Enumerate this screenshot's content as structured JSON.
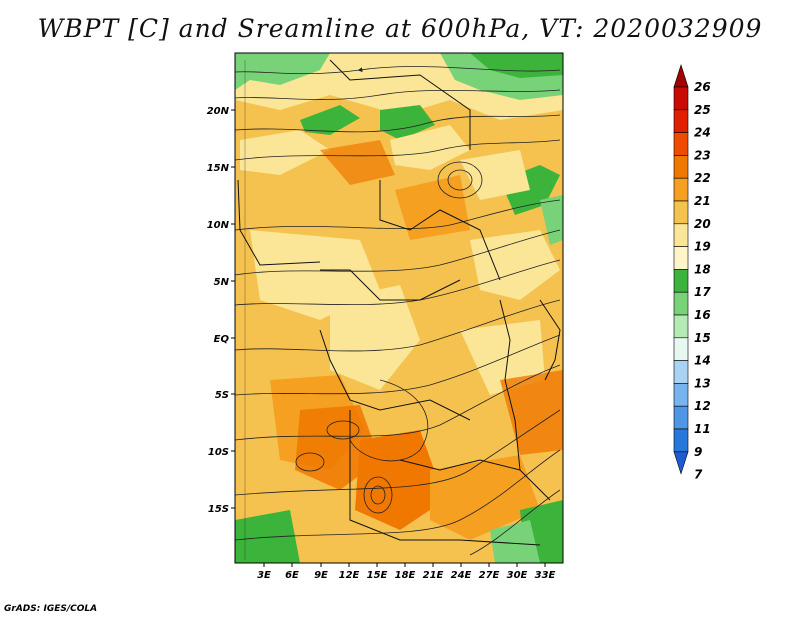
{
  "title": "WBPT [C] and Sreamline at 600hPa, VT: 2020032909",
  "credit": "GrADS: IGES/COLA",
  "map": {
    "lat_ticks": [
      "20N",
      "15N",
      "10N",
      "5N",
      "EQ",
      "5S",
      "10S",
      "15S"
    ],
    "lon_ticks": [
      "3E",
      "6E",
      "9E",
      "12E",
      "15E",
      "18E",
      "21E",
      "24E",
      "27E",
      "30E",
      "33E"
    ]
  },
  "colorbar": {
    "labels": [
      "26",
      "25",
      "24",
      "23",
      "22",
      "21",
      "20",
      "19",
      "18",
      "17",
      "16",
      "15",
      "14",
      "13",
      "12",
      "11",
      "9",
      "7"
    ],
    "colors": [
      "#a50000",
      "#c80a00",
      "#e01e00",
      "#f04b00",
      "#f07800",
      "#f5a020",
      "#f5c250",
      "#fae696",
      "#fff5c8",
      "#3cb43c",
      "#78d278",
      "#b4eab4",
      "#e6f8f0",
      "#aad2f5",
      "#78b4f0",
      "#5096e6",
      "#2878dc",
      "#1e5ad2"
    ]
  }
}
